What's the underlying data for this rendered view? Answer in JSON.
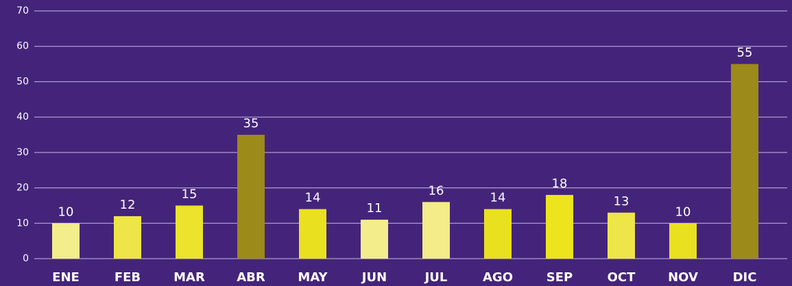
{
  "chart_data": {
    "type": "bar",
    "categories": [
      "ENE",
      "FEB",
      "MAR",
      "ABR",
      "MAY",
      "JUN",
      "JUL",
      "AGO",
      "SEP",
      "OCT",
      "NOV",
      "DIC"
    ],
    "values": [
      10,
      12,
      15,
      35,
      14,
      11,
      16,
      14,
      18,
      13,
      10,
      55
    ],
    "colors": [
      "#f4ed8c",
      "#eee548",
      "#ebe32c",
      "#9c8a1a",
      "#e9e11f",
      "#f4ed8c",
      "#f3ec88",
      "#e9e11f",
      "#ece41d",
      "#eee548",
      "#e9e11f",
      "#9c8a1a"
    ],
    "ylim": [
      0,
      70
    ],
    "yticks": [
      0,
      10,
      20,
      30,
      40,
      50,
      60,
      70
    ],
    "grid": true
  }
}
